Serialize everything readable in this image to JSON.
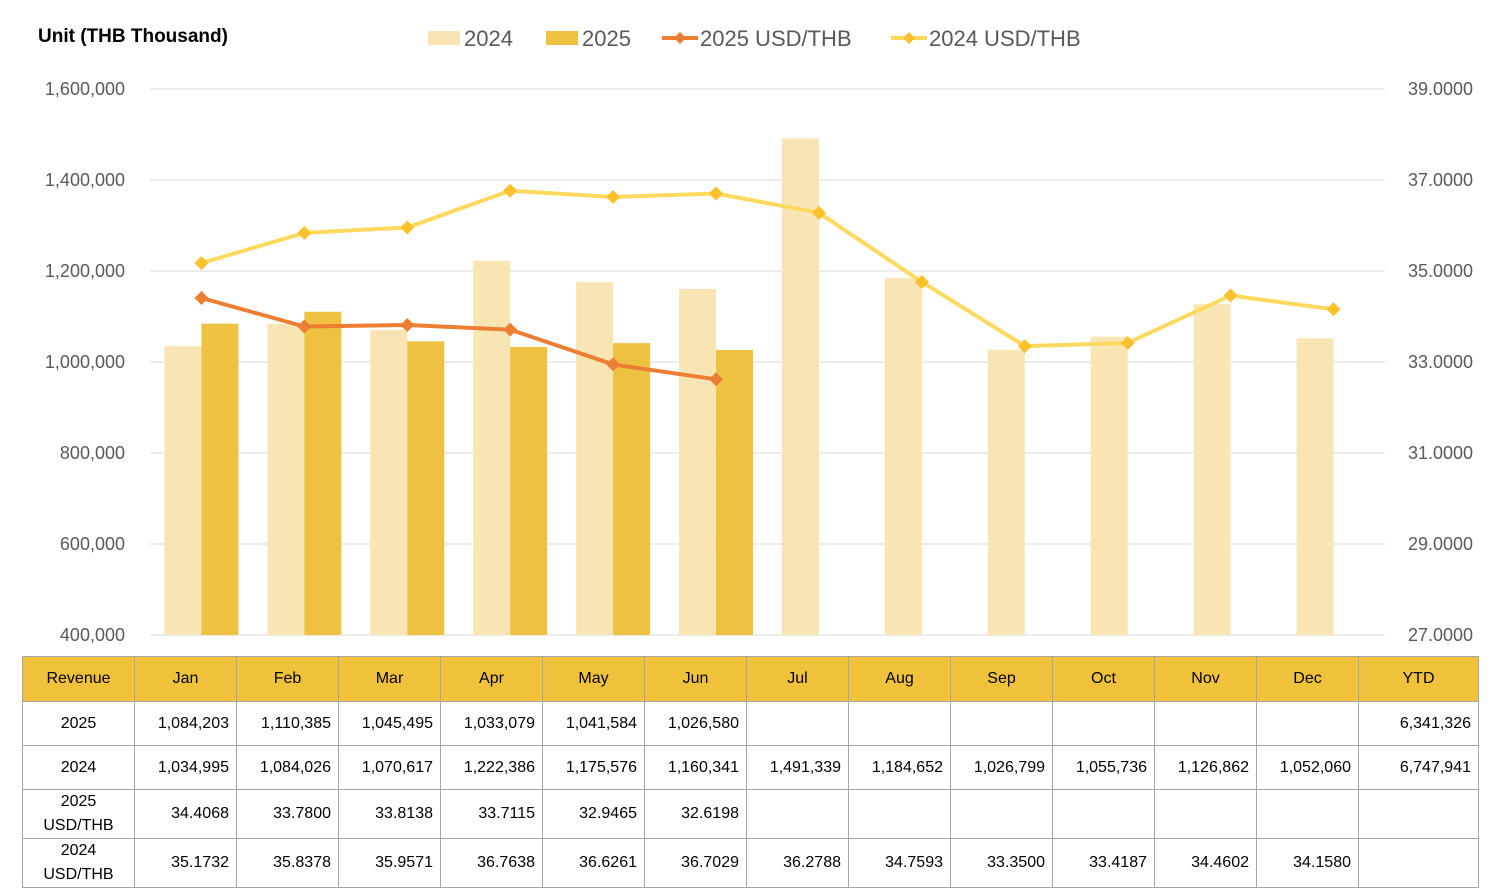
{
  "unit_label": "Unit (THB  Thousand)",
  "chart_data": {
    "type": "bar",
    "categories": [
      "Jan",
      "Feb",
      "Mar",
      "Apr",
      "May",
      "Jun",
      "Jul",
      "Aug",
      "Sep",
      "Oct",
      "Nov",
      "Dec"
    ],
    "bar_series": [
      {
        "name": "2024",
        "color": "#f9e5b3",
        "values": [
          1034995,
          1084026,
          1070617,
          1222386,
          1175576,
          1160341,
          1491339,
          1184652,
          1026799,
          1055736,
          1126862,
          1052060
        ]
      },
      {
        "name": "2025",
        "color": "#eec141",
        "values": [
          1084203,
          1110385,
          1045495,
          1033079,
          1041584,
          1026580,
          null,
          null,
          null,
          null,
          null,
          null
        ]
      }
    ],
    "line_series": [
      {
        "name": "2025 USD/THB",
        "color": "#ec7e34",
        "axis": "right",
        "values": [
          34.4068,
          33.78,
          33.8138,
          33.7115,
          32.9465,
          32.6198,
          null,
          null,
          null,
          null,
          null,
          null
        ]
      },
      {
        "name": "2024 USD/THB",
        "color": "#fdd95f",
        "marker_color": "#fcc02b",
        "axis": "right",
        "values": [
          35.1732,
          35.8378,
          35.9571,
          36.7638,
          36.6261,
          36.7029,
          36.2788,
          34.7593,
          33.35,
          33.4187,
          34.4602,
          34.158
        ]
      }
    ],
    "left_axis": {
      "ylim": [
        400000,
        1600000
      ],
      "ticks": [
        "400,000",
        "600,000",
        "800,000",
        "1,000,000",
        "1,200,000",
        "1,400,000",
        "1,600,000"
      ]
    },
    "right_axis": {
      "ylim": [
        27,
        39
      ],
      "ticks": [
        "27.0000",
        "29.0000",
        "31.0000",
        "33.0000",
        "35.0000",
        "37.0000",
        "39.0000"
      ]
    },
    "grid": true,
    "legend_position": "top"
  },
  "table": {
    "header": [
      "Revenue",
      "Jan",
      "Feb",
      "Mar",
      "Apr",
      "May",
      "Jun",
      "Jul",
      "Aug",
      "Sep",
      "Oct",
      "Nov",
      "Dec",
      "YTD"
    ],
    "rows": [
      [
        "2025",
        "1,084,203",
        "1,110,385",
        "1,045,495",
        "1,033,079",
        "1,041,584",
        "1,026,580",
        "",
        "",
        "",
        "",
        "",
        "",
        "6,341,326"
      ],
      [
        "2024",
        "1,034,995",
        "1,084,026",
        "1,070,617",
        "1,222,386",
        "1,175,576",
        "1,160,341",
        "1,491,339",
        "1,184,652",
        "1,026,799",
        "1,055,736",
        "1,126,862",
        "1,052,060",
        "6,747,941"
      ],
      [
        "2025 USD/THB",
        "34.4068",
        "33.7800",
        "33.8138",
        "33.7115",
        "32.9465",
        "32.6198",
        "",
        "",
        "",
        "",
        "",
        "",
        ""
      ],
      [
        "2024 USD/THB",
        "35.1732",
        "35.8378",
        "35.9571",
        "36.7638",
        "36.6261",
        "36.7029",
        "36.2788",
        "34.7593",
        "33.3500",
        "33.4187",
        "34.4602",
        "34.1580",
        ""
      ]
    ]
  }
}
